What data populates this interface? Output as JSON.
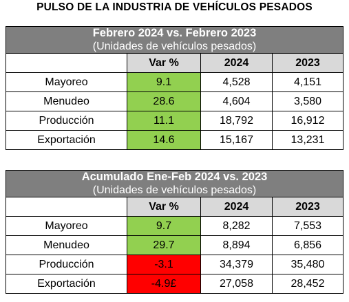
{
  "title": "PULSO DE LA INDUSTRIA DE VEHÍCULOS PESADOS",
  "colors": {
    "header_bg": "#7f7f7f",
    "colhead_bg": "#d9d9d9",
    "positive": "#92d050",
    "negative": "#ff0000"
  },
  "table1": {
    "title": "Febrero 2024 vs. Febrero 2023",
    "subtitle": "(Unidades de vehículos pesados)",
    "columns": [
      "Var %",
      "2024",
      "2023"
    ],
    "rows": [
      {
        "label": "Mayoreo",
        "var": "9.1",
        "y2024": "4,528",
        "y2023": "4,151"
      },
      {
        "label": "Menudeo",
        "var": "28.6",
        "y2024": "4,604",
        "y2023": "3,580"
      },
      {
        "label": "Producción",
        "var": "11.1",
        "y2024": "18,792",
        "y2023": "16,912"
      },
      {
        "label": "Exportación",
        "var": "14.6",
        "y2024": "15,167",
        "y2023": "13,231"
      }
    ]
  },
  "table2": {
    "title": "Acumulado Ene-Feb 2024 vs. 2023",
    "subtitle": "(Unidades de vehículos pesados)",
    "columns": [
      "Var %",
      "2024",
      "2023"
    ],
    "rows": [
      {
        "label": "Mayoreo",
        "var": "9.7",
        "y2024": "8,282",
        "y2023": "7,553"
      },
      {
        "label": "Menudeo",
        "var": "29.7",
        "y2024": "8,894",
        "y2023": "6,856"
      },
      {
        "label": "Producción",
        "var": "-3.1",
        "y2024": "34,379",
        "y2023": "35,480"
      },
      {
        "label": "Exportación",
        "var": "-4.9£",
        "y2024": "27,058",
        "y2023": "28,452"
      }
    ]
  }
}
